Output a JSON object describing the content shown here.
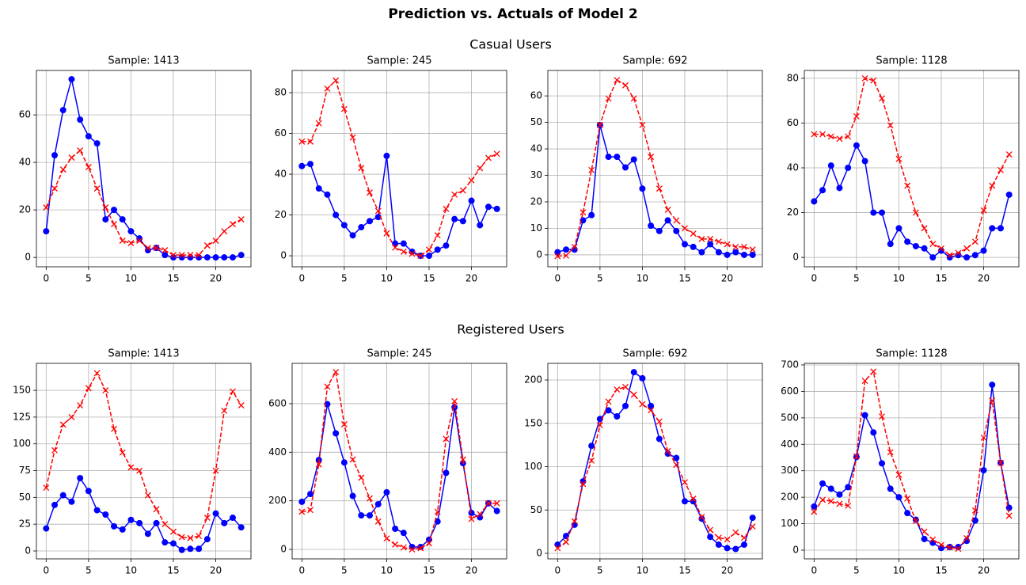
{
  "figure": {
    "title": "Prediction vs. Actuals of Model 2",
    "row_titles": [
      "Casual Users",
      "Registered Users"
    ]
  },
  "chart_data": [
    {
      "type": "line",
      "title": "Sample: 1413",
      "x": [
        0,
        1,
        2,
        3,
        4,
        5,
        6,
        7,
        8,
        9,
        10,
        11,
        12,
        13,
        14,
        15,
        16,
        17,
        18,
        19,
        20,
        21,
        22,
        23
      ],
      "series": [
        {
          "color": "#0000ff",
          "marker": "o",
          "linestyle": "solid",
          "values": [
            11,
            43,
            62,
            75,
            58,
            51,
            48,
            16,
            20,
            16,
            11,
            8,
            3,
            4,
            1,
            0,
            0,
            0,
            0,
            0,
            0,
            0,
            0,
            1
          ]
        },
        {
          "color": "#ff0000",
          "marker": "x",
          "linestyle": "dashed",
          "values": [
            21,
            29,
            37,
            42,
            45,
            38,
            29,
            21,
            14,
            7,
            6,
            7,
            4,
            4,
            3,
            1,
            1,
            1,
            1,
            5,
            7,
            11,
            14,
            16
          ]
        }
      ],
      "xlim": [
        -1.15,
        24.15
      ],
      "xticks": [
        0,
        5,
        10,
        15,
        20
      ],
      "ylim": [
        -3.95,
        78.7
      ],
      "yticks": [
        0,
        20,
        40,
        60
      ],
      "grid": true
    },
    {
      "type": "line",
      "title": "Sample: 245",
      "x": [
        0,
        1,
        2,
        3,
        4,
        5,
        6,
        7,
        8,
        9,
        10,
        11,
        12,
        13,
        14,
        15,
        16,
        17,
        18,
        19,
        20,
        21,
        22,
        23
      ],
      "series": [
        {
          "color": "#0000ff",
          "marker": "o",
          "linestyle": "solid",
          "values": [
            44,
            45,
            33,
            30,
            20,
            15,
            10,
            14,
            17,
            19,
            49,
            6,
            6,
            2,
            0,
            0,
            3,
            5,
            18,
            17,
            27,
            15,
            24,
            23
          ]
        },
        {
          "color": "#ff0000",
          "marker": "x",
          "linestyle": "dashed",
          "values": [
            56,
            56,
            65,
            82,
            86,
            72,
            58,
            43,
            31,
            22,
            11,
            4,
            2,
            1,
            0,
            3,
            10,
            23,
            30,
            32,
            37,
            43,
            48,
            50
          ]
        }
      ],
      "xlim": [
        -1.15,
        24.15
      ],
      "xticks": [
        0,
        5,
        10,
        15,
        20
      ],
      "ylim": [
        -5.4,
        90.9
      ],
      "yticks": [
        0,
        20,
        40,
        60,
        80
      ],
      "grid": true
    },
    {
      "type": "line",
      "title": "Sample: 692",
      "x": [
        0,
        1,
        2,
        3,
        4,
        5,
        6,
        7,
        8,
        9,
        10,
        11,
        12,
        13,
        14,
        15,
        16,
        17,
        18,
        19,
        20,
        21,
        22,
        23
      ],
      "series": [
        {
          "color": "#0000ff",
          "marker": "o",
          "linestyle": "solid",
          "values": [
            1,
            2,
            2,
            13,
            15,
            49,
            37,
            37,
            33,
            36,
            25,
            11,
            9,
            13,
            9,
            4,
            3,
            1,
            4,
            1,
            0,
            1,
            0,
            0
          ]
        },
        {
          "color": "#ff0000",
          "marker": "x",
          "linestyle": "dashed",
          "values": [
            -0.5,
            -0.3,
            3,
            16,
            32,
            49,
            59,
            66,
            64,
            59,
            49,
            37,
            25,
            17,
            13,
            10,
            8,
            6,
            6,
            5,
            4,
            3,
            3,
            2
          ]
        }
      ],
      "xlim": [
        -1.15,
        24.15
      ],
      "xticks": [
        0,
        5,
        10,
        15,
        20
      ],
      "ylim": [
        -4.5,
        69.6
      ],
      "yticks": [
        0,
        10,
        20,
        30,
        40,
        50,
        60
      ],
      "grid": true
    },
    {
      "type": "line",
      "title": "Sample: 1128",
      "x": [
        0,
        1,
        2,
        3,
        4,
        5,
        6,
        7,
        8,
        9,
        10,
        11,
        12,
        13,
        14,
        15,
        16,
        17,
        18,
        19,
        20,
        21,
        22,
        23
      ],
      "series": [
        {
          "color": "#0000ff",
          "marker": "o",
          "linestyle": "solid",
          "values": [
            25,
            30,
            41,
            31,
            40,
            50,
            43,
            20,
            20,
            6,
            13,
            7,
            5,
            4,
            0,
            3,
            0,
            1,
            0,
            1,
            3,
            13,
            13,
            28
          ]
        },
        {
          "color": "#ff0000",
          "marker": "x",
          "linestyle": "dashed",
          "values": [
            55,
            55,
            54,
            53,
            54,
            63,
            80,
            79,
            71,
            59,
            44,
            32,
            20,
            13,
            6,
            4,
            1,
            2,
            4,
            7,
            21,
            32,
            39,
            46
          ]
        }
      ],
      "xlim": [
        -1.15,
        24.15
      ],
      "xticks": [
        0,
        5,
        10,
        15,
        20
      ],
      "ylim": [
        -4.2,
        83.5
      ],
      "yticks": [
        0,
        20,
        40,
        60,
        80
      ],
      "grid": true
    },
    {
      "type": "line",
      "title": "Sample: 1413",
      "x": [
        0,
        1,
        2,
        3,
        4,
        5,
        6,
        7,
        8,
        9,
        10,
        11,
        12,
        13,
        14,
        15,
        16,
        17,
        18,
        19,
        20,
        21,
        22,
        23
      ],
      "series": [
        {
          "color": "#0000ff",
          "marker": "o",
          "linestyle": "solid",
          "values": [
            21,
            43,
            52,
            46,
            68,
            56,
            38,
            34,
            23,
            20,
            29,
            26,
            16,
            26,
            8,
            7,
            1,
            2,
            2,
            11,
            35,
            26,
            31,
            22
          ]
        },
        {
          "color": "#ff0000",
          "marker": "x",
          "linestyle": "dashed",
          "values": [
            59,
            94,
            118,
            125,
            136,
            152,
            166,
            150,
            114,
            92,
            78,
            75,
            52,
            39,
            25,
            18,
            13,
            12,
            14,
            31,
            75,
            131,
            149,
            136
          ]
        }
      ],
      "xlim": [
        -1.15,
        24.15
      ],
      "xticks": [
        0,
        5,
        10,
        15,
        20
      ],
      "ylim": [
        -7.4,
        175.2
      ],
      "yticks": [
        0,
        25,
        50,
        75,
        100,
        125,
        150
      ],
      "grid": true
    },
    {
      "type": "line",
      "title": "Sample: 245",
      "x": [
        0,
        1,
        2,
        3,
        4,
        5,
        6,
        7,
        8,
        9,
        10,
        11,
        12,
        13,
        14,
        15,
        16,
        17,
        18,
        19,
        20,
        21,
        22,
        23
      ],
      "series": [
        {
          "color": "#0000ff",
          "marker": "o",
          "linestyle": "solid",
          "values": [
            196,
            228,
            368,
            598,
            478,
            358,
            220,
            140,
            140,
            186,
            235,
            85,
            68,
            10,
            10,
            40,
            115,
            315,
            585,
            355,
            150,
            132,
            190,
            158
          ]
        },
        {
          "color": "#ff0000",
          "marker": "x",
          "linestyle": "dashed",
          "values": [
            155,
            162,
            350,
            670,
            730,
            515,
            370,
            295,
            210,
            115,
            45,
            20,
            8,
            0,
            5,
            25,
            155,
            455,
            610,
            370,
            125,
            145,
            190,
            190
          ]
        }
      ],
      "xlim": [
        -1.15,
        24.15
      ],
      "xticks": [
        0,
        5,
        10,
        15,
        20
      ],
      "ylim": [
        -39,
        766
      ],
      "yticks": [
        0,
        200,
        400,
        600
      ],
      "grid": true
    },
    {
      "type": "line",
      "title": "Sample: 692",
      "x": [
        0,
        1,
        2,
        3,
        4,
        5,
        6,
        7,
        8,
        9,
        10,
        11,
        12,
        13,
        14,
        15,
        16,
        17,
        18,
        19,
        20,
        21,
        22,
        23
      ],
      "series": [
        {
          "color": "#0000ff",
          "marker": "o",
          "linestyle": "solid",
          "values": [
            10,
            20,
            33,
            83,
            124,
            155,
            165,
            158,
            170,
            209,
            202,
            170,
            132,
            115,
            110,
            60,
            60,
            40,
            19,
            10,
            6,
            5,
            10,
            41
          ]
        },
        {
          "color": "#ff0000",
          "marker": "x",
          "linestyle": "dashed",
          "values": [
            6,
            13,
            37,
            80,
            107,
            148,
            175,
            189,
            192,
            183,
            172,
            165,
            152,
            118,
            102,
            82,
            63,
            42,
            27,
            18,
            16,
            24,
            18,
            31
          ]
        }
      ],
      "xlim": [
        -1.15,
        24.15
      ],
      "xticks": [
        0,
        5,
        10,
        15,
        20
      ],
      "ylim": [
        -6.4,
        219.2
      ],
      "yticks": [
        0,
        50,
        100,
        150,
        200
      ],
      "grid": true
    },
    {
      "type": "line",
      "title": "Sample: 1128",
      "x": [
        0,
        1,
        2,
        3,
        4,
        5,
        6,
        7,
        8,
        9,
        10,
        11,
        12,
        13,
        14,
        15,
        16,
        17,
        18,
        19,
        20,
        21,
        22,
        23
      ],
      "series": [
        {
          "color": "#0000ff",
          "marker": "o",
          "linestyle": "solid",
          "values": [
            165,
            252,
            232,
            210,
            238,
            352,
            510,
            445,
            328,
            232,
            200,
            140,
            115,
            42,
            28,
            8,
            12,
            12,
            35,
            112,
            302,
            625,
            330,
            160
          ]
        },
        {
          "color": "#ff0000",
          "marker": "x",
          "linestyle": "dashed",
          "values": [
            145,
            190,
            185,
            175,
            168,
            355,
            640,
            675,
            505,
            370,
            285,
            195,
            110,
            70,
            40,
            20,
            10,
            5,
            45,
            150,
            425,
            565,
            330,
            130
          ]
        }
      ],
      "xlim": [
        -1.15,
        24.15
      ],
      "xticks": [
        0,
        5,
        10,
        15,
        20
      ],
      "ylim": [
        -33,
        706
      ],
      "yticks": [
        0,
        100,
        200,
        300,
        400,
        500,
        600,
        700
      ],
      "grid": true
    }
  ]
}
